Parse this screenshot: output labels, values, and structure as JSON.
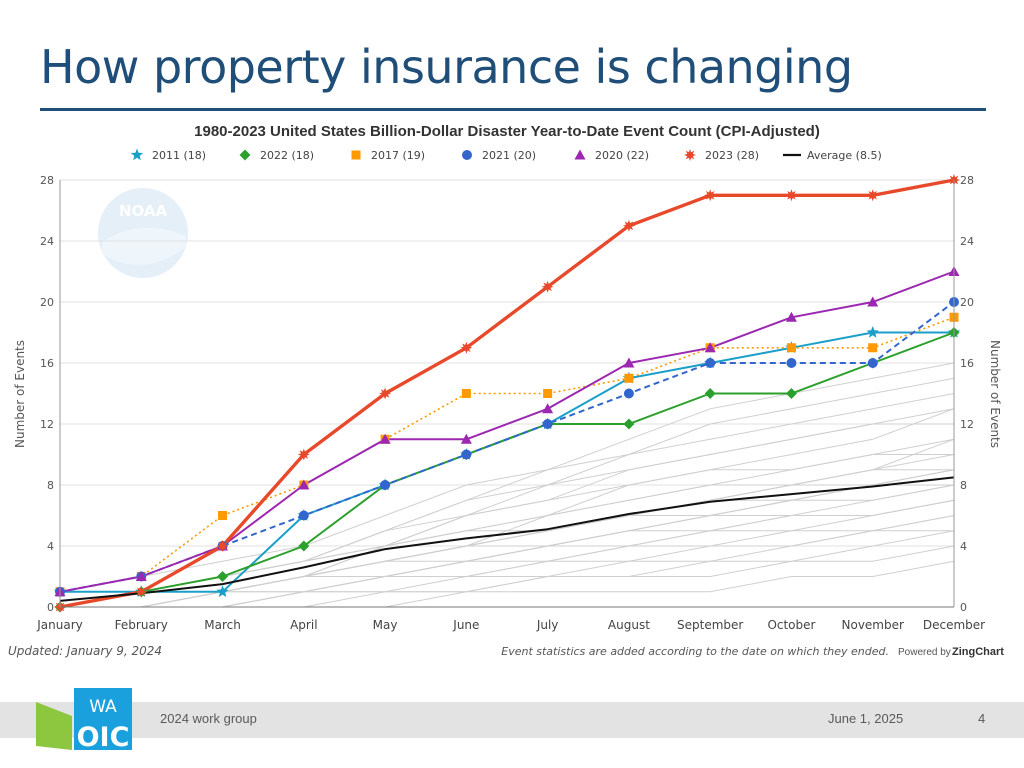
{
  "slide": {
    "title": "How property insurance is changing",
    "footer_left": "2024 work group",
    "footer_date": "June 1, 2025",
    "page_number": "4",
    "logo_text": {
      "top": "WA",
      "bottom": "OIC"
    }
  },
  "colors": {
    "title": "#1f4e79",
    "s2011": "#1a9fc9",
    "s2022": "#2ca02c",
    "s2017": "#ff9900",
    "s2021": "#3366cc",
    "s2020": "#9c27b0",
    "s2023": "#e8492a",
    "average": "#111111",
    "history": "#cfcfcf",
    "logo_blue": "#1aa0dc",
    "logo_green": "#8dc63f"
  },
  "chart_data": {
    "type": "line",
    "title": "1980-2023 United States Billion-Dollar Disaster Year-to-Date Event Count (CPI-Adjusted)",
    "ylabel": "Number of Events",
    "ylabel_right": "Number of Events",
    "categories": [
      "January",
      "February",
      "March",
      "April",
      "May",
      "June",
      "July",
      "August",
      "September",
      "October",
      "November",
      "December"
    ],
    "ylim": [
      0,
      28
    ],
    "yticks": [
      "0",
      "4",
      "8",
      "12",
      "16",
      "20",
      "24",
      "28"
    ],
    "grid": true,
    "legend_position": "top",
    "watermark": "NOAA",
    "series": [
      {
        "name": "2011 (18)",
        "marker": "star",
        "style": "solid",
        "values": [
          1,
          1,
          1,
          6,
          8,
          10,
          12,
          15,
          16,
          17,
          18,
          18
        ]
      },
      {
        "name": "2022 (18)",
        "marker": "diamond",
        "style": "solid",
        "values": [
          0,
          1,
          2,
          4,
          8,
          10,
          12,
          12,
          14,
          14,
          16,
          18
        ]
      },
      {
        "name": "2017 (19)",
        "marker": "square",
        "style": "dotted",
        "values": [
          1,
          2,
          6,
          8,
          11,
          14,
          14,
          15,
          17,
          17,
          17,
          19
        ]
      },
      {
        "name": "2021 (20)",
        "marker": "circle",
        "style": "dashed",
        "values": [
          1,
          2,
          4,
          6,
          8,
          10,
          12,
          14,
          16,
          16,
          16,
          20
        ]
      },
      {
        "name": "2020 (22)",
        "marker": "triangle",
        "style": "solid",
        "values": [
          1,
          2,
          4,
          8,
          11,
          11,
          13,
          16,
          17,
          19,
          20,
          22
        ]
      },
      {
        "name": "2023 (28)",
        "marker": "burst",
        "style": "thick",
        "values": [
          0,
          1,
          4,
          10,
          14,
          17,
          21,
          25,
          27,
          27,
          27,
          28
        ]
      },
      {
        "name": "Average (8.5)",
        "marker": "none",
        "style": "solid",
        "values": [
          0.4,
          0.9,
          1.5,
          2.6,
          3.8,
          4.5,
          5.1,
          6.1,
          6.9,
          7.4,
          7.9,
          8.5
        ]
      }
    ],
    "history_values": [
      [
        0,
        0,
        1,
        2,
        3,
        4,
        6,
        8,
        9,
        10,
        11,
        13
      ],
      [
        0,
        1,
        1,
        2,
        4,
        5,
        6,
        7,
        8,
        9,
        10,
        11
      ],
      [
        0,
        0,
        0,
        1,
        2,
        3,
        4,
        5,
        6,
        7,
        8,
        9
      ],
      [
        1,
        1,
        2,
        3,
        5,
        6,
        7,
        8,
        9,
        9,
        10,
        10
      ],
      [
        0,
        1,
        2,
        3,
        4,
        5,
        5,
        6,
        7,
        8,
        8,
        9
      ],
      [
        0,
        0,
        1,
        1,
        2,
        3,
        4,
        5,
        6,
        7,
        8,
        9
      ],
      [
        1,
        1,
        1,
        2,
        3,
        4,
        5,
        6,
        7,
        8,
        9,
        10
      ],
      [
        0,
        0,
        1,
        2,
        3,
        3,
        4,
        5,
        5,
        6,
        6,
        7
      ],
      [
        0,
        1,
        1,
        2,
        2,
        3,
        3,
        4,
        5,
        5,
        6,
        7
      ],
      [
        0,
        0,
        0,
        1,
        1,
        2,
        2,
        3,
        3,
        4,
        5,
        6
      ],
      [
        0,
        1,
        2,
        3,
        5,
        7,
        8,
        10,
        11,
        12,
        13,
        14
      ],
      [
        0,
        0,
        1,
        2,
        4,
        6,
        7,
        9,
        10,
        11,
        12,
        12
      ],
      [
        0,
        1,
        1,
        2,
        3,
        4,
        5,
        6,
        7,
        8,
        9,
        11
      ],
      [
        0,
        0,
        0,
        0,
        1,
        1,
        2,
        2,
        3,
        3,
        4,
        5
      ],
      [
        0,
        0,
        1,
        1,
        2,
        2,
        3,
        4,
        4,
        5,
        5,
        6
      ],
      [
        1,
        2,
        3,
        4,
        6,
        8,
        9,
        10,
        12,
        13,
        14,
        15
      ],
      [
        0,
        1,
        2,
        3,
        5,
        7,
        9,
        11,
        13,
        14,
        15,
        16
      ],
      [
        0,
        0,
        1,
        2,
        3,
        4,
        5,
        6,
        7,
        7,
        8,
        8
      ],
      [
        0,
        0,
        0,
        1,
        1,
        1,
        2,
        2,
        2,
        3,
        3,
        4
      ],
      [
        1,
        1,
        2,
        3,
        4,
        5,
        6,
        7,
        8,
        8,
        9,
        9
      ],
      [
        0,
        0,
        1,
        2,
        2,
        3,
        4,
        4,
        5,
        6,
        6,
        7
      ],
      [
        0,
        1,
        1,
        2,
        3,
        4,
        4,
        5,
        6,
        6,
        7,
        8
      ],
      [
        0,
        0,
        0,
        1,
        2,
        2,
        3,
        3,
        4,
        4,
        5,
        5
      ],
      [
        0,
        0,
        0,
        0,
        0,
        1,
        1,
        1,
        1,
        2,
        2,
        3
      ],
      [
        0,
        1,
        2,
        3,
        4,
        6,
        8,
        9,
        10,
        11,
        12,
        13
      ],
      [
        0,
        0,
        1,
        2,
        3,
        4,
        5,
        6,
        6,
        7,
        7,
        8
      ]
    ],
    "footnote_left": "Updated: January 9, 2024",
    "footnote_right": "Event statistics are added according to the date on which they ended.",
    "powered_by": "Powered by",
    "brand": "ZingChart"
  }
}
